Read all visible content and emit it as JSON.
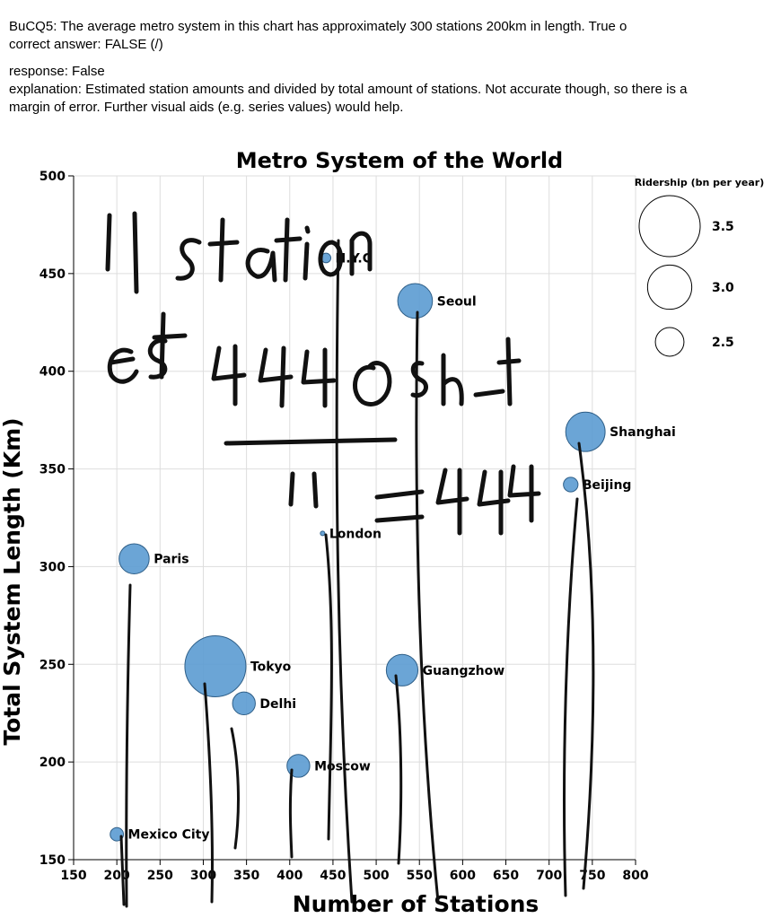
{
  "question_text": "BuCQ5: The average metro system in this chart has approximately 300 stations 200km in length. True o",
  "correct_answer_text": "correct answer: FALSE (/)",
  "response_text": "response: False",
  "explanation_text": "explanation: Estimated station amounts and divided by total amount of stations. Not accurate though, so there is a margin of error. Further visual aids (e.g. series values) would help.",
  "handwriting": {
    "line1": "11 station",
    "line2": "est 4440 stat",
    "line3": "11 = 444"
  },
  "colors": {
    "bubble_fill": "#5b9bd1",
    "bubble_stroke": "#2f5f88",
    "grid": "#dddddd"
  },
  "chart_data": {
    "type": "scatter",
    "title": "Metro System of the World",
    "xlabel": "Number of Stations",
    "ylabel": "Total System Length (Km)",
    "xlim": [
      150,
      800
    ],
    "ylim": [
      150,
      500
    ],
    "xticks": [
      150,
      200,
      250,
      300,
      350,
      400,
      450,
      500,
      550,
      600,
      650,
      700,
      750,
      800
    ],
    "yticks": [
      150,
      200,
      250,
      300,
      350,
      400,
      450,
      500
    ],
    "grid": true,
    "size_legend": {
      "title": "Ridership (bn per year)",
      "values": [
        3.5,
        3.0,
        2.5
      ],
      "labels": [
        "3.5",
        "3.0",
        "2.5"
      ]
    },
    "points": [
      {
        "name": "N.Y.C",
        "x": 442,
        "y": 458,
        "ridership": 1.8
      },
      {
        "name": "Seoul",
        "x": 545,
        "y": 436,
        "ridership": 2.7
      },
      {
        "name": "Shanghai",
        "x": 742,
        "y": 369,
        "ridership": 2.85
      },
      {
        "name": "Beijing",
        "x": 725,
        "y": 342,
        "ridership": 2.0
      },
      {
        "name": "London",
        "x": 438,
        "y": 317,
        "ridership": 1.4
      },
      {
        "name": "Paris",
        "x": 220,
        "y": 304,
        "ridership": 2.55
      },
      {
        "name": "Tokyo",
        "x": 314,
        "y": 249,
        "ridership": 3.5
      },
      {
        "name": "Guangzhow",
        "x": 530,
        "y": 247,
        "ridership": 2.6
      },
      {
        "name": "Delhi",
        "x": 347,
        "y": 230,
        "ridership": 2.3
      },
      {
        "name": "Moscow",
        "x": 410,
        "y": 198,
        "ridership": 2.3
      },
      {
        "name": "Mexico City",
        "x": 200,
        "y": 163,
        "ridership": 1.95
      }
    ]
  }
}
